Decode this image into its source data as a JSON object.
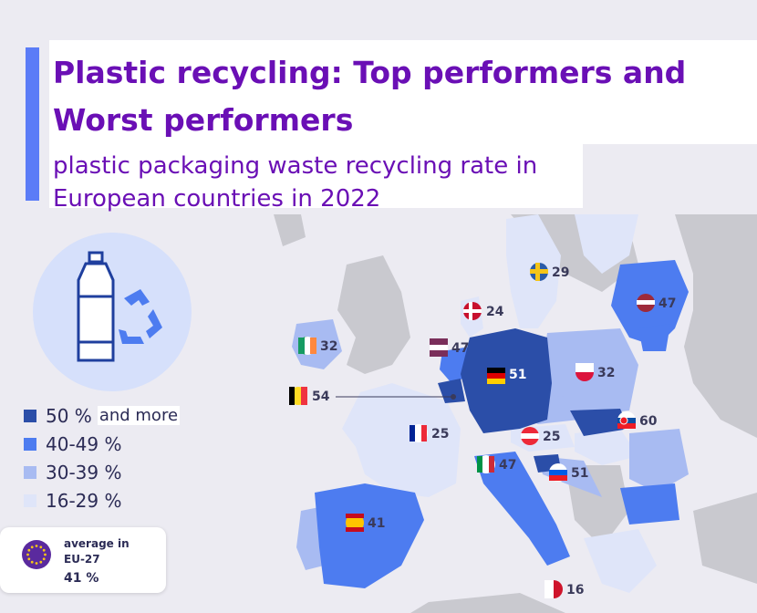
{
  "header": {
    "title": "Plastic recycling: Top performers and Worst performers",
    "subtitle": "plastic packaging waste recycling rate in European countries in 2022"
  },
  "legend": [
    {
      "label": "50 %",
      "extra": "and more",
      "color": "#2b4ea8"
    },
    {
      "label": "40-49 %",
      "extra": "",
      "color": "#4d7cf0"
    },
    {
      "label": "30-39 %",
      "extra": "",
      "color": "#a8bbf2"
    },
    {
      "label": "16-29 %",
      "extra": "",
      "color": "#dfe5f9"
    }
  ],
  "average": {
    "label_line1": "average in",
    "label_line2": "EU-27",
    "value": "41 %"
  },
  "chart_data": {
    "type": "choropleth map",
    "unit": "%",
    "countries": [
      {
        "name": "Sweden",
        "value": 29
      },
      {
        "name": "Latvia",
        "value": 47
      },
      {
        "name": "Denmark",
        "value": 24
      },
      {
        "name": "Ireland",
        "value": 32
      },
      {
        "name": "Netherlands",
        "value": 47
      },
      {
        "name": "Germany",
        "value": 51
      },
      {
        "name": "Poland",
        "value": 32
      },
      {
        "name": "Belgium",
        "value": 54
      },
      {
        "name": "France",
        "value": 25
      },
      {
        "name": "Austria",
        "value": 25
      },
      {
        "name": "Slovakia",
        "value": 60
      },
      {
        "name": "Italy",
        "value": 47
      },
      {
        "name": "Slovenia",
        "value": 51
      },
      {
        "name": "Spain",
        "value": 41
      },
      {
        "name": "Malta",
        "value": 16
      }
    ]
  },
  "colors": {
    "title": "#6a0fb5",
    "accent_bar": "#5b7cf7",
    "non_eu": "#c9c9cf",
    "sea": "#ecebf2"
  }
}
